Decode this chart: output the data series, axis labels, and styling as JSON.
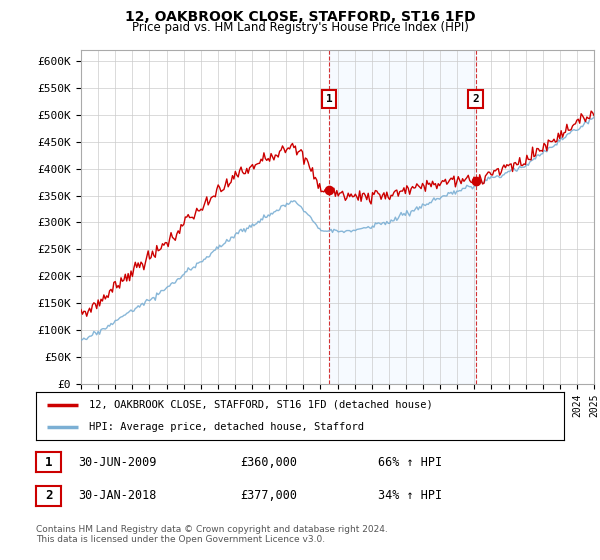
{
  "title": "12, OAKBROOK CLOSE, STAFFORD, ST16 1FD",
  "subtitle": "Price paid vs. HM Land Registry's House Price Index (HPI)",
  "ylabel_ticks": [
    "£0",
    "£50K",
    "£100K",
    "£150K",
    "£200K",
    "£250K",
    "£300K",
    "£350K",
    "£400K",
    "£450K",
    "£500K",
    "£550K",
    "£600K"
  ],
  "ytick_values": [
    0,
    50000,
    100000,
    150000,
    200000,
    250000,
    300000,
    350000,
    400000,
    450000,
    500000,
    550000,
    600000
  ],
  "ylim": [
    0,
    620000
  ],
  "xlim_start": 1995,
  "xlim_end": 2025,
  "sale1_year": 2009.5,
  "sale1_price": 360000,
  "sale1_label": "1",
  "sale2_year": 2018.083,
  "sale2_price": 377000,
  "sale2_label": "2",
  "line_property_color": "#cc0000",
  "line_hpi_color": "#7bafd4",
  "vline_color": "#cc0000",
  "shade_color": "#ddeeff",
  "legend_property_label": "12, OAKBROOK CLOSE, STAFFORD, ST16 1FD (detached house)",
  "legend_hpi_label": "HPI: Average price, detached house, Stafford",
  "footnote_line1": "Contains HM Land Registry data © Crown copyright and database right 2024.",
  "footnote_line2": "This data is licensed under the Open Government Licence v3.0.",
  "bg_color": "#ffffff",
  "grid_color": "#cccccc",
  "table_row1_num": "1",
  "table_row1_date": "30-JUN-2009",
  "table_row1_price": "£360,000",
  "table_row1_pct": "66% ↑ HPI",
  "table_row2_num": "2",
  "table_row2_date": "30-JAN-2018",
  "table_row2_price": "£377,000",
  "table_row2_pct": "34% ↑ HPI"
}
